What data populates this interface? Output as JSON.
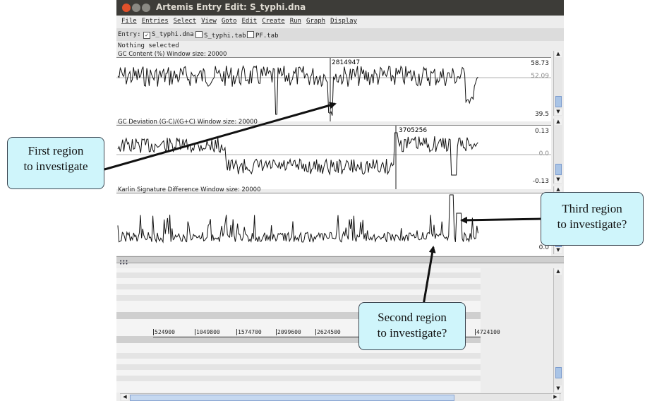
{
  "window": {
    "title": "Artemis Entry Edit: S_typhi.dna"
  },
  "menu": [
    "File",
    "Entries",
    "Select",
    "View",
    "Goto",
    "Edit",
    "Create",
    "Run",
    "Graph",
    "Display"
  ],
  "entry_bar": {
    "label": "Entry:",
    "entries": [
      {
        "name": "S_typhi.dna",
        "checked": true
      },
      {
        "name": "S_typhi.tab",
        "checked": false
      },
      {
        "name": "PF.tab",
        "checked": false
      }
    ]
  },
  "status": "Nothing selected",
  "plots": [
    {
      "label": "GC Content (%)  Window size: 20000",
      "max": "58.73",
      "avg": "52.09",
      "min": "39.5",
      "marker": "2814947"
    },
    {
      "label": "GC Deviation (G-C)/(G+C)  Window size: 20000",
      "max": "0.13",
      "avg": "0.0",
      "min": "-0.13",
      "marker": "3705256"
    },
    {
      "label": "Karlin Signature Difference  Window size: 20000",
      "max": "0",
      "min": "0.0"
    }
  ],
  "ruler": {
    "ticks": [
      "524900",
      "1049800",
      "1574700",
      "2099600",
      "2624500",
      "4724100"
    ]
  },
  "callouts": {
    "first": [
      "First region",
      "to investigate"
    ],
    "second": [
      "Second region",
      "to investigate?"
    ],
    "third": [
      "Third region",
      "to investigate?"
    ]
  },
  "colors": {
    "callout_fill": "#cff5fb",
    "titlebar": "#3d3c38",
    "close_button": "#e2512b"
  }
}
